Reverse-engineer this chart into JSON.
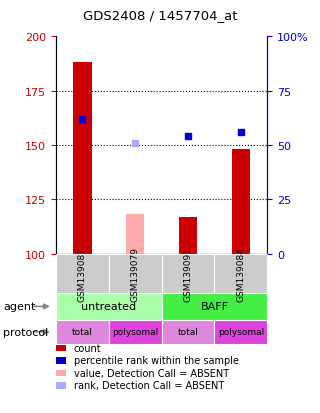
{
  "title": "GDS2408 / 1457704_at",
  "samples": [
    "GSM139087",
    "GSM139079",
    "GSM139091",
    "GSM139084"
  ],
  "bar_values": [
    188,
    118,
    117,
    148
  ],
  "bar_colors": [
    "#cc0000",
    "#ffaaaa",
    "#cc0000",
    "#cc0000"
  ],
  "dot_values": [
    162,
    151,
    154,
    156
  ],
  "dot_colors": [
    "#0000cc",
    "#aaaaff",
    "#0000cc",
    "#0000cc"
  ],
  "ylim_left": [
    100,
    200
  ],
  "yticks_left": [
    100,
    125,
    150,
    175,
    200
  ],
  "yticks_right": [
    0,
    25,
    50,
    75,
    100
  ],
  "ytick_labels_right": [
    "0",
    "25",
    "50",
    "75",
    "100%"
  ],
  "sample_bg_color": "#cccccc",
  "agent_rows": [
    {
      "start": 0,
      "end": 2,
      "label": "untreated",
      "color": "#aaffaa"
    },
    {
      "start": 2,
      "end": 4,
      "label": "BAFF",
      "color": "#44ee44"
    }
  ],
  "protocol_rows": [
    {
      "label": "total",
      "color": "#dd88dd"
    },
    {
      "label": "polysomal",
      "color": "#dd44dd"
    },
    {
      "label": "total",
      "color": "#dd88dd"
    },
    {
      "label": "polysomal",
      "color": "#dd44dd"
    }
  ],
  "legend_items": [
    {
      "color": "#cc0000",
      "label": "count"
    },
    {
      "color": "#0000cc",
      "label": "percentile rank within the sample"
    },
    {
      "color": "#ffaaaa",
      "label": "value, Detection Call = ABSENT"
    },
    {
      "color": "#aaaaff",
      "label": "rank, Detection Call = ABSENT"
    }
  ],
  "left_axis_color": "#cc0000",
  "right_axis_color": "#0000cc",
  "grid_lines": [
    125,
    150,
    175
  ]
}
